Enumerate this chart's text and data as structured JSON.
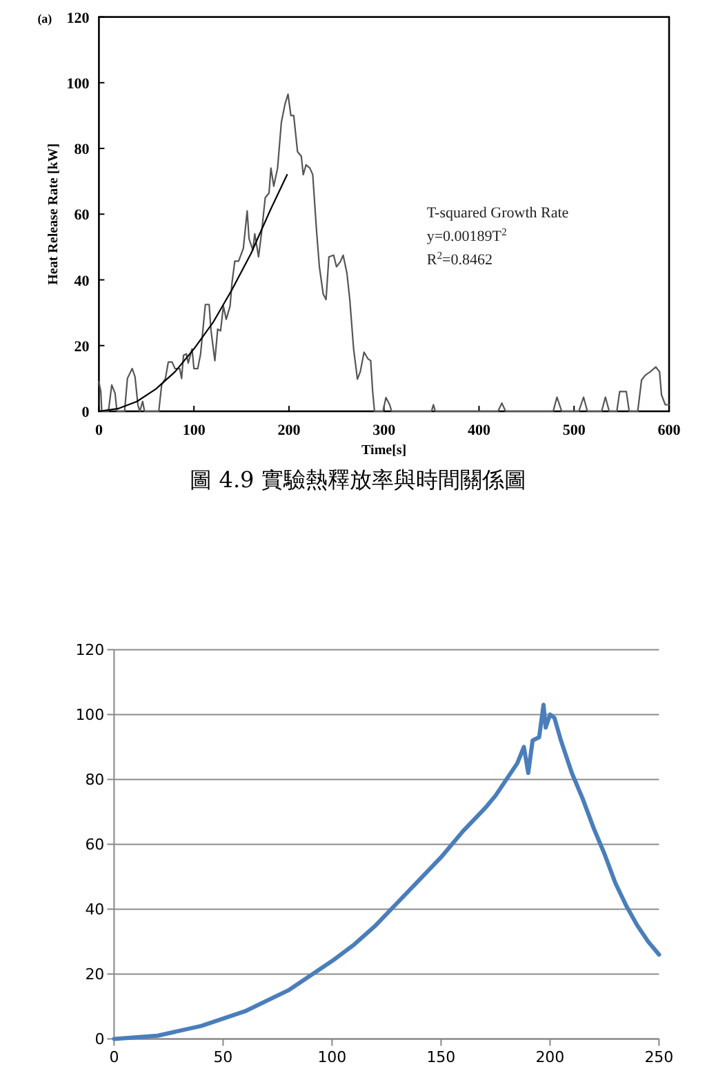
{
  "chart_data": [
    {
      "type": "line",
      "title": "(a)",
      "xlabel": "Time[s]",
      "ylabel": "Heat Release Rate [kW]",
      "xlim": [
        0,
        600
      ],
      "xticks": [
        0,
        100,
        200,
        300,
        400,
        500,
        600
      ],
      "ylim": [
        0,
        120
      ],
      "yticks": [
        0,
        20,
        40,
        60,
        80,
        100,
        120
      ],
      "annotations": [
        "T-squared Growth Rate",
        "y=0.00189T$^{2}$",
        "R$^{2}$=0.8462",
        "圖 4.9 實驗熱釋放率與時間關係圖"
      ],
      "series": [
        {
          "color": "#555555",
          "x": [
            0,
            2,
            3,
            10,
            13.5,
            17,
            19,
            27,
            30,
            35,
            38,
            41,
            43,
            46,
            48,
            63,
            66,
            70,
            73,
            77,
            80,
            85,
            87,
            89,
            92,
            94,
            98,
            100,
            104,
            107,
            110,
            112,
            116,
            118,
            122,
            125,
            128,
            131,
            134,
            138,
            140,
            143,
            147,
            152,
            156,
            158,
            162,
            164,
            168,
            171,
            175,
            179,
            181,
            184,
            186,
            188,
            192,
            196,
            199,
            202,
            205,
            209,
            213,
            215,
            218,
            222,
            225,
            229,
            232,
            236,
            239,
            242,
            247,
            250,
            254,
            257,
            261,
            264,
            268,
            272,
            275,
            279,
            283,
            286,
            288,
            290,
            299,
            302,
            306,
            308,
            350,
            352,
            354,
            420,
            424,
            428,
            478,
            482,
            487,
            505,
            510,
            514,
            529,
            533,
            537,
            545,
            548,
            555,
            558,
            567,
            571,
            575,
            580,
            586,
            590,
            592,
            596,
            600
          ],
          "values": [
            9,
            6,
            0,
            0,
            8,
            5.5,
            0,
            0,
            10,
            13,
            10.5,
            2,
            0,
            3,
            0,
            0,
            8,
            10,
            15,
            15,
            13,
            13,
            10,
            17,
            17.5,
            14.7,
            19,
            13,
            13,
            17.5,
            26.5,
            32.5,
            32.5,
            24.5,
            15.4,
            25,
            24.5,
            32,
            28,
            32,
            39,
            45.7,
            45.7,
            49.6,
            61,
            52.5,
            49,
            54,
            47,
            54,
            65,
            66.4,
            74,
            68.5,
            71.3,
            74,
            88,
            93.7,
            96.5,
            90,
            90,
            79,
            77.6,
            72,
            75,
            74,
            72,
            55,
            44,
            35.7,
            34,
            47,
            47.5,
            44,
            45.5,
            47.5,
            42,
            34,
            19,
            9.8,
            12,
            18,
            16,
            15.4,
            6.3,
            0,
            0,
            4.2,
            2,
            0,
            0,
            2,
            0,
            0,
            2.5,
            0,
            0,
            4.3,
            0,
            0,
            4.3,
            0,
            0,
            4.3,
            0,
            0,
            6,
            6,
            0,
            0,
            9.5,
            11,
            12,
            13.5,
            12,
            5,
            2,
            2
          ]
        },
        {
          "color": "#000000",
          "x": [
            0,
            20,
            40,
            60,
            80,
            100,
            120,
            140,
            160,
            180,
            198
          ],
          "values": [
            0,
            0.8,
            3,
            6.8,
            12,
            19,
            27,
            37,
            48,
            61,
            72
          ]
        }
      ]
    },
    {
      "type": "line",
      "grid": "y",
      "xlim": [
        0,
        250
      ],
      "xticks": [
        0,
        50,
        100,
        150,
        200,
        250
      ],
      "ylim": [
        0,
        120
      ],
      "yticks": [
        0,
        20,
        40,
        60,
        80,
        100,
        120
      ],
      "series": [
        {
          "color": "#4a7ebb",
          "x": [
            0,
            20,
            40,
            60,
            80,
            90,
            100,
            110,
            120,
            130,
            140,
            150,
            160,
            170,
            175,
            180,
            185,
            188,
            190,
            192,
            195,
            197,
            198,
            200,
            202,
            205,
            210,
            215,
            220,
            225,
            230,
            235,
            240,
            245,
            250
          ],
          "values": [
            0,
            1,
            4,
            8.5,
            15,
            19.5,
            24,
            29,
            35,
            42,
            49,
            56,
            64,
            71,
            75,
            80,
            85,
            90,
            82,
            92,
            93,
            103,
            96,
            100,
            99,
            92,
            82,
            74,
            65,
            57,
            48,
            41,
            35,
            30,
            26
          ]
        }
      ]
    }
  ]
}
